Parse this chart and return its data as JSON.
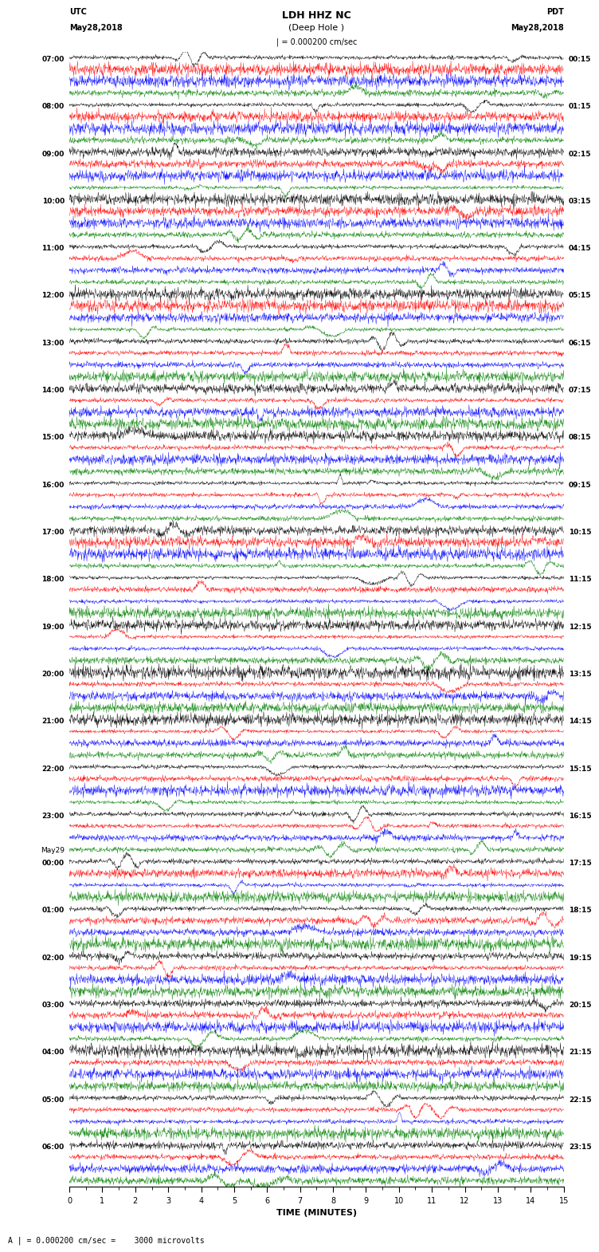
{
  "title_line1": "LDH HHZ NC",
  "title_line2": "(Deep Hole )",
  "scale_label": "| = 0.000200 cm/sec",
  "footer_label": "A | = 0.000200 cm/sec =    3000 microvolts",
  "xlabel": "TIME (MINUTES)",
  "left_label_top": "UTC",
  "left_label_date": "May28,2018",
  "right_label_top": "PDT",
  "right_label_date": "May28,2018",
  "hour_labels_utc": [
    "07:00",
    "08:00",
    "09:00",
    "10:00",
    "11:00",
    "12:00",
    "13:00",
    "14:00",
    "15:00",
    "16:00",
    "17:00",
    "18:00",
    "19:00",
    "20:00",
    "21:00",
    "22:00",
    "23:00",
    "00:00",
    "01:00",
    "02:00",
    "03:00",
    "04:00",
    "05:00",
    "06:00"
  ],
  "hour_labels_pdt": [
    "00:15",
    "01:15",
    "02:15",
    "03:15",
    "04:15",
    "05:15",
    "06:15",
    "07:15",
    "08:15",
    "09:15",
    "10:15",
    "11:15",
    "12:15",
    "13:15",
    "14:15",
    "15:15",
    "16:15",
    "17:15",
    "18:15",
    "19:15",
    "20:15",
    "21:15",
    "22:15",
    "23:15"
  ],
  "midnight_index": 17,
  "colors": [
    "black",
    "red",
    "blue",
    "green"
  ],
  "n_hours": 24,
  "n_channels": 4,
  "x_min": 0,
  "x_max": 15,
  "x_ticks": [
    0,
    1,
    2,
    3,
    4,
    5,
    6,
    7,
    8,
    9,
    10,
    11,
    12,
    13,
    14,
    15
  ],
  "bg_color": "white",
  "noise_base": 0.06,
  "seed": 42,
  "channel_offsets": [
    0.12,
    0.37,
    0.62,
    0.87
  ],
  "trace_scale": 0.2,
  "lw": 0.3,
  "fontsize_tick": 6.5,
  "fontsize_title": 9,
  "fontsize_sub": 8,
  "fontsize_header": 7,
  "fontsize_footer": 7,
  "fontsize_xlabel": 8
}
